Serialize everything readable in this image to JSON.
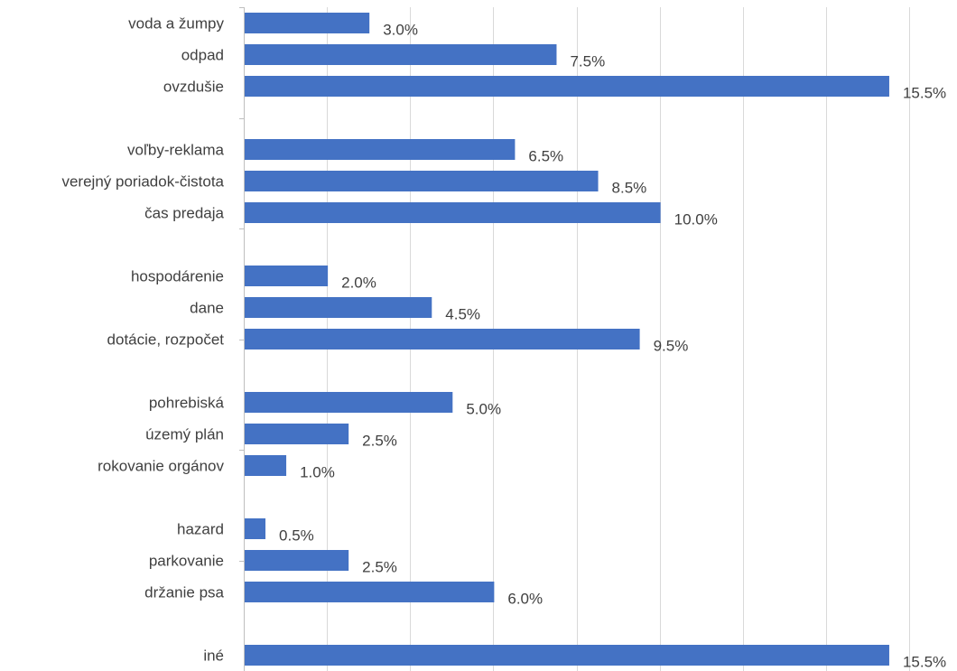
{
  "chart_data": {
    "type": "bar",
    "orientation": "horizontal",
    "bar_color": "#4472c4",
    "grid": true,
    "xlim": [
      0,
      16
    ],
    "value_format": "percent",
    "categories": [
      "voda a žumpy",
      "odpad",
      "ovzdušie",
      "",
      "voľby-reklama",
      "verejný poriadok-čistota",
      "čas predaja",
      "",
      "hospodárenie",
      "dane",
      "dotácie, rozpočet",
      "",
      "pohrebiská",
      "územý plán",
      "rokovanie orgánov",
      "",
      "hazard",
      "parkovanie",
      "držanie psa",
      "",
      "iné"
    ],
    "values": [
      3.0,
      7.5,
      15.5,
      null,
      6.5,
      8.5,
      10.0,
      null,
      2.0,
      4.5,
      9.5,
      null,
      5.0,
      2.5,
      1.0,
      null,
      0.5,
      2.5,
      6.0,
      null,
      15.5
    ],
    "value_labels": [
      "3.0%",
      "7.5%",
      "15.5%",
      "",
      "6.5%",
      "8.5%",
      "10.0%",
      "",
      "2.0%",
      "4.5%",
      "9.5%",
      "",
      "5.0%",
      "2.5%",
      "1.0%",
      "",
      "0.5%",
      "2.5%",
      "6.0%",
      "",
      "15.5%"
    ]
  }
}
